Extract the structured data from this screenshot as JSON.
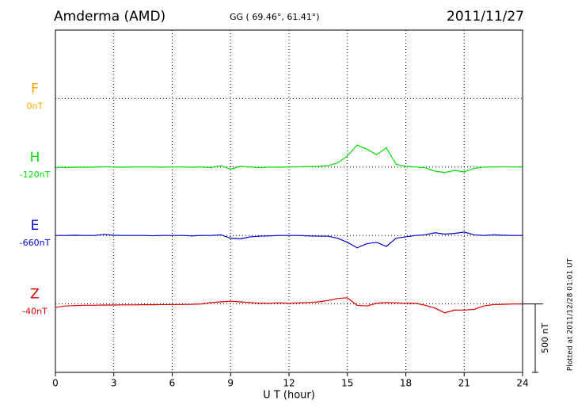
{
  "chart_data": {
    "type": "line",
    "title": "Amderma (AMD)",
    "subtitle": "GG ( 69.46°,  61.41°)",
    "date": "2011/11/27",
    "xlabel": "U T (hour)",
    "plotted_note": "Plotted at 2011/12/28 01:01 UT",
    "xlim": [
      0,
      24
    ],
    "xticks": [
      0,
      3,
      6,
      9,
      12,
      15,
      18,
      21,
      24
    ],
    "ylim": [
      -500,
      2000
    ],
    "grid": true,
    "scale_bar": {
      "value": 500,
      "label": "500 nT"
    },
    "x": [
      0,
      0.5,
      1,
      1.5,
      2,
      2.5,
      3,
      3.5,
      4,
      4.5,
      5,
      5.5,
      6,
      6.5,
      7,
      7.5,
      8,
      8.5,
      9,
      9.5,
      10,
      10.5,
      11,
      11.5,
      12,
      12.5,
      13,
      13.5,
      14,
      14.5,
      15,
      15.5,
      16,
      16.5,
      17,
      17.5,
      18,
      18.5,
      19,
      19.5,
      20,
      20.5,
      21,
      21.5,
      22,
      22.5,
      23,
      23.5,
      24
    ],
    "series": [
      {
        "name": "F",
        "baseline_label": "0nT",
        "offset": 1500,
        "color": "#ffa500",
        "values": [
          null,
          null,
          null,
          null,
          null,
          null,
          null,
          null,
          null,
          null,
          null,
          null,
          null,
          null,
          null,
          null,
          null,
          null,
          null,
          null,
          null,
          null,
          null,
          null,
          null,
          null,
          null,
          null,
          null,
          null,
          null,
          null,
          null,
          null,
          null,
          null,
          null,
          null,
          null,
          null,
          null,
          null,
          null,
          null,
          null,
          null,
          null,
          null,
          null
        ]
      },
      {
        "name": "H",
        "baseline_label": "-120nT",
        "offset": 1000,
        "color": "#00e000",
        "values": [
          -5,
          -3,
          -2,
          -2,
          -1,
          2,
          0,
          -1,
          0,
          0,
          0,
          -1,
          0,
          0,
          -1,
          0,
          -5,
          10,
          -15,
          5,
          0,
          -5,
          0,
          -2,
          0,
          2,
          3,
          5,
          10,
          30,
          80,
          160,
          130,
          90,
          140,
          20,
          5,
          0,
          -5,
          -30,
          -40,
          -25,
          -35,
          -10,
          0,
          0,
          2,
          0,
          1
        ]
      },
      {
        "name": "E",
        "baseline_label": "-660nT",
        "offset": 500,
        "color": "#0000cc",
        "values": [
          0,
          0,
          2,
          0,
          0,
          8,
          2,
          0,
          0,
          0,
          -2,
          0,
          0,
          0,
          -3,
          0,
          0,
          5,
          -20,
          -25,
          -10,
          -5,
          -3,
          0,
          0,
          0,
          -3,
          -5,
          -5,
          -20,
          -50,
          -90,
          -60,
          -50,
          -80,
          -20,
          -10,
          0,
          5,
          20,
          10,
          15,
          25,
          5,
          0,
          5,
          2,
          0,
          0
        ]
      },
      {
        "name": "Z",
        "baseline_label": "-40nT",
        "offset": 0,
        "color": "#dd0000",
        "values": [
          -25,
          -15,
          -12,
          -10,
          -10,
          -8,
          -8,
          -7,
          -7,
          -6,
          -6,
          -5,
          -5,
          -4,
          -3,
          0,
          10,
          15,
          20,
          15,
          10,
          5,
          5,
          8,
          5,
          8,
          10,
          15,
          25,
          40,
          45,
          -10,
          -15,
          5,
          10,
          8,
          5,
          5,
          -10,
          -30,
          -65,
          -45,
          -45,
          -40,
          -15,
          -5,
          -3,
          0,
          0
        ]
      }
    ]
  }
}
